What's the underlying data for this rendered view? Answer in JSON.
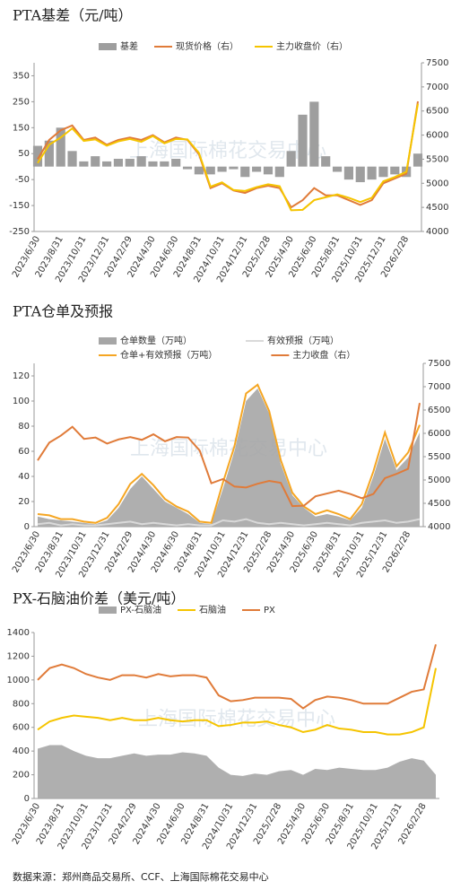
{
  "chart_data": [
    {
      "type": "bar_line",
      "title": "PTA基差（元/吨）",
      "watermark": "上海国际棉花交易中心",
      "categories": [
        "2023/6/30",
        null,
        "2023/8/31",
        null,
        "2023/10/31",
        null,
        "2023/12/31",
        null,
        "2024/2/29",
        null,
        "2024/4/30",
        null,
        "2024/6/30",
        null,
        "2024/8/31",
        null,
        "2024/10/31",
        null,
        "2024/12/31",
        null,
        "2025/2/28",
        null,
        "2025/4/30",
        null,
        "2025/6/30",
        null,
        "2025/8/31",
        null,
        "2025/10/31",
        null,
        "2025/12/31",
        null,
        "2026/2/28",
        null
      ],
      "ylim": [
        -250,
        400
      ],
      "yticks": [
        -250,
        -150,
        -50,
        50,
        150,
        250,
        350
      ],
      "y2lim": [
        4000,
        7500
      ],
      "y2ticks": [
        4000,
        4500,
        5000,
        5500,
        6000,
        6500,
        7000,
        7500
      ],
      "series": [
        {
          "name": "基差",
          "kind": "bar",
          "color": "#9e9e9e",
          "values": [
            80,
            100,
            150,
            60,
            20,
            40,
            20,
            30,
            30,
            40,
            20,
            20,
            30,
            -10,
            -30,
            -30,
            -20,
            -10,
            -40,
            -20,
            -30,
            -40,
            60,
            200,
            250,
            40,
            -20,
            -50,
            -60,
            -50,
            -40,
            -30,
            -40,
            50
          ]
        },
        {
          "name": "现货价格（右）",
          "kind": "line",
          "axis": "y2",
          "color": "#e07b39",
          "values": [
            5500,
            5900,
            6100,
            6200,
            5900,
            5950,
            5800,
            5900,
            5950,
            5900,
            6000,
            5850,
            5950,
            5900,
            5600,
            4900,
            5000,
            4850,
            4800,
            4900,
            4950,
            4900,
            4500,
            4650,
            4900,
            4750,
            4750,
            4650,
            4550,
            4650,
            5000,
            5100,
            5200,
            6700
          ]
        },
        {
          "name": "主力收盘价（右）",
          "kind": "line",
          "axis": "y2",
          "color": "#f5c400",
          "values": [
            5420,
            5800,
            5950,
            6140,
            5880,
            5910,
            5780,
            5870,
            5920,
            5860,
            5980,
            5830,
            5920,
            5910,
            5630,
            4930,
            5020,
            4860,
            4840,
            4920,
            4980,
            4940,
            4440,
            4450,
            4650,
            4710,
            4770,
            4700,
            4610,
            4700,
            5040,
            5130,
            5240,
            6650
          ]
        }
      ]
    },
    {
      "type": "area_line",
      "title": "PTA仓单及预报",
      "watermark": "上海国际棉花交易中心",
      "categories": [
        "2023/6/30",
        null,
        "2023/8/31",
        null,
        "2023/10/31",
        null,
        "2023/12/31",
        null,
        "2024/2/29",
        null,
        "2024/4/30",
        null,
        "2024/6/30",
        null,
        "2024/8/31",
        null,
        "2024/10/31",
        null,
        "2024/12/31",
        null,
        "2025/2/28",
        null,
        "2025/4/30",
        null,
        "2025/6/30",
        null,
        "2025/8/31",
        null,
        "2025/10/31",
        null,
        "2025/12/31",
        null,
        "2026/2/28",
        null
      ],
      "ylim": [
        0,
        130
      ],
      "yticks": [
        0,
        20,
        40,
        60,
        80,
        100,
        120
      ],
      "y2lim": [
        4000,
        7500
      ],
      "y2ticks": [
        4000,
        4500,
        5000,
        5500,
        6000,
        6500,
        7000,
        7500
      ],
      "series": [
        {
          "name": "仓单数量（万吨）",
          "kind": "area",
          "color": "#a6a6a6",
          "values": [
            8,
            6,
            5,
            4,
            3,
            2,
            5,
            15,
            30,
            40,
            30,
            20,
            15,
            10,
            3,
            2,
            30,
            60,
            100,
            110,
            90,
            50,
            25,
            15,
            8,
            10,
            8,
            5,
            15,
            40,
            70,
            45,
            55,
            75
          ]
        },
        {
          "name": "有效预报（万吨）",
          "kind": "line",
          "color": "#d9d9d9",
          "values": [
            2,
            3,
            1,
            2,
            1,
            1,
            2,
            3,
            4,
            2,
            3,
            2,
            1,
            2,
            1,
            1,
            5,
            4,
            6,
            3,
            2,
            3,
            2,
            1,
            2,
            3,
            2,
            1,
            3,
            4,
            5,
            3,
            4,
            6
          ]
        },
        {
          "name": "仓单+有效预报（万吨）",
          "kind": "line",
          "color": "#f5a623",
          "values": [
            10,
            9,
            6,
            6,
            4,
            3,
            7,
            18,
            34,
            42,
            33,
            22,
            16,
            12,
            4,
            3,
            35,
            64,
            106,
            113,
            92,
            53,
            27,
            16,
            10,
            13,
            10,
            6,
            18,
            44,
            75,
            48,
            59,
            81
          ]
        },
        {
          "name": "主力收盘（右）",
          "kind": "line",
          "axis": "y2",
          "color": "#e07b39",
          "values": [
            5420,
            5800,
            5950,
            6140,
            5880,
            5910,
            5780,
            5870,
            5920,
            5860,
            5980,
            5830,
            5920,
            5910,
            5630,
            4930,
            5020,
            4860,
            4840,
            4920,
            4980,
            4940,
            4440,
            4450,
            4650,
            4710,
            4770,
            4700,
            4610,
            4700,
            5040,
            5130,
            5240,
            6650
          ]
        }
      ]
    },
    {
      "type": "area_line",
      "title": "PX-石脑油价差（美元/吨）",
      "watermark": "上海国际棉花交易中心",
      "categories": [
        "2023/6/30",
        null,
        "2023/8/31",
        null,
        "2023/10/31",
        null,
        "2023/12/31",
        null,
        "2024/2/29",
        null,
        "2024/4/30",
        null,
        "2024/6/30",
        null,
        "2024/8/31",
        null,
        "2024/10/31",
        null,
        "2024/12/31",
        null,
        "2025/2/28",
        null,
        "2025/4/30",
        null,
        "2025/6/30",
        null,
        "2025/8/31",
        null,
        "2025/10/31",
        null,
        "2025/12/31",
        null,
        "2026/2/28",
        null
      ],
      "ylim": [
        0,
        1400
      ],
      "yticks": [
        0,
        200,
        400,
        600,
        800,
        1000,
        1200,
        1400
      ],
      "series": [
        {
          "name": "PX-石脑油",
          "kind": "area",
          "color": "#a6a6a6",
          "values": [
            420,
            450,
            450,
            400,
            360,
            340,
            340,
            360,
            380,
            360,
            370,
            370,
            390,
            380,
            360,
            260,
            200,
            190,
            210,
            200,
            230,
            240,
            200,
            250,
            240,
            260,
            250,
            240,
            240,
            260,
            310,
            340,
            320,
            200
          ]
        },
        {
          "name": "石脑油",
          "kind": "line",
          "color": "#f5c400",
          "values": [
            580,
            650,
            680,
            700,
            690,
            680,
            660,
            680,
            660,
            660,
            680,
            660,
            650,
            660,
            660,
            610,
            620,
            640,
            640,
            650,
            620,
            600,
            560,
            580,
            620,
            590,
            580,
            560,
            560,
            540,
            540,
            560,
            600,
            1100
          ]
        },
        {
          "name": "PX",
          "kind": "line",
          "color": "#e07b39",
          "values": [
            1000,
            1100,
            1130,
            1100,
            1050,
            1020,
            1000,
            1040,
            1040,
            1020,
            1050,
            1030,
            1040,
            1040,
            1020,
            870,
            820,
            830,
            850,
            850,
            850,
            840,
            760,
            830,
            860,
            850,
            830,
            800,
            800,
            800,
            850,
            900,
            920,
            1300
          ]
        }
      ]
    }
  ],
  "source": "数据来源：郑州商品交易所、CCF、上海国际棉花交易中心"
}
